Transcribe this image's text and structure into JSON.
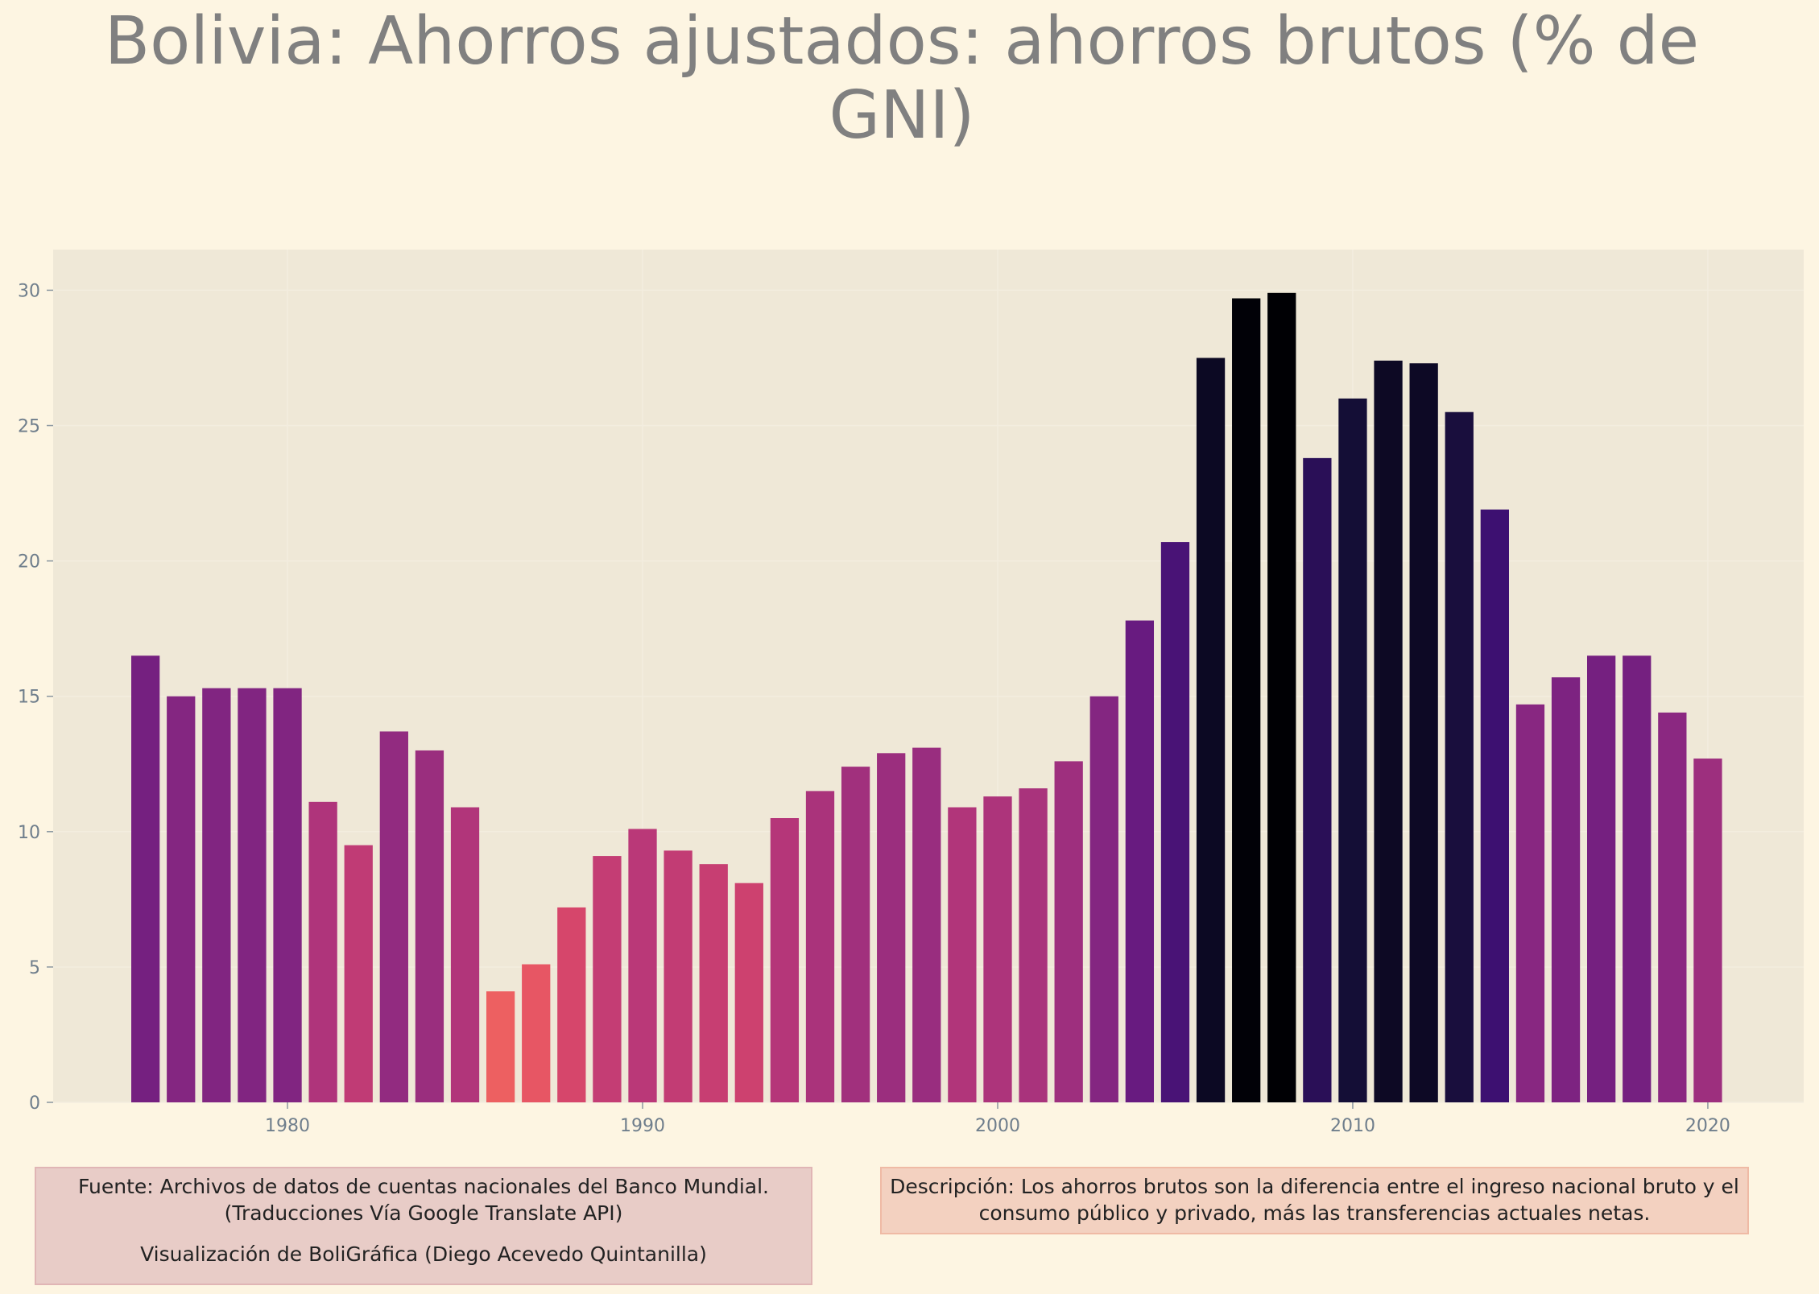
{
  "chart_data": {
    "type": "bar",
    "title": "Bolivia:  Ahorros ajustados: ahorros brutos (% de GNI)",
    "x": [
      1976,
      1977,
      1978,
      1979,
      1980,
      1981,
      1982,
      1983,
      1984,
      1985,
      1986,
      1987,
      1988,
      1989,
      1990,
      1991,
      1992,
      1993,
      1994,
      1995,
      1996,
      1997,
      1998,
      1999,
      2000,
      2001,
      2002,
      2003,
      2004,
      2005,
      2006,
      2007,
      2008,
      2009,
      2010,
      2011,
      2012,
      2013,
      2014,
      2015,
      2016,
      2017,
      2018,
      2019,
      2020
    ],
    "values": [
      16.5,
      15.0,
      15.3,
      15.3,
      15.3,
      11.1,
      9.5,
      13.7,
      13.0,
      10.9,
      4.1,
      5.1,
      7.2,
      9.1,
      10.1,
      9.3,
      8.8,
      8.1,
      10.5,
      11.5,
      12.4,
      12.9,
      13.1,
      10.9,
      11.3,
      11.6,
      12.6,
      15.0,
      17.8,
      20.7,
      27.5,
      29.7,
      29.9,
      23.8,
      26.0,
      27.4,
      27.3,
      25.5,
      21.9,
      14.7,
      15.7,
      16.5,
      16.5,
      14.4,
      12.7
    ],
    "colormap": "magma_r",
    "xlim": [
      1973.4,
      2022.7
    ],
    "xticks": [
      1980,
      1990,
      2000,
      2010,
      2020
    ],
    "ylim": [
      0,
      31.5
    ],
    "yticks": [
      0,
      5,
      10,
      15,
      20,
      25,
      30
    ],
    "grid": true,
    "source": "Fuente: Archivos de datos de cuentas nacionales del Banco Mundial.",
    "translation_note": "(Traducciones Vía Google Translate API)",
    "credit": "Visualización de BoliGráfica (Diego Acevedo Quintanilla)",
    "description": "Descripción: Los ahorros brutos son la diferencia entre el ingreso nacional bruto y el consumo público y privado, más las transferencias actuales netas."
  }
}
